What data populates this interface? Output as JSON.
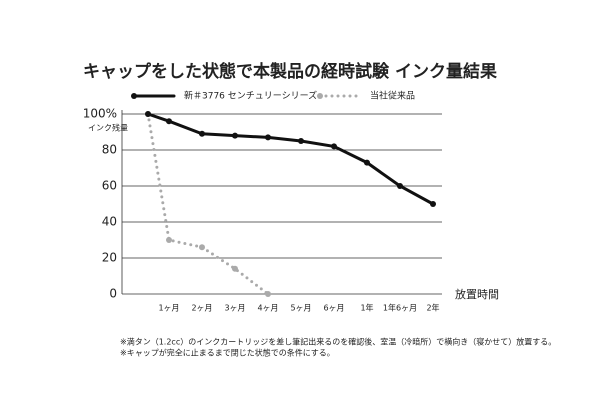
{
  "chart_data": {
    "type": "line",
    "title": "キャップをした状態で本製品の経時試験 インク量結果",
    "y_label": "インク残量",
    "x_label": "放置時間",
    "categories": [
      null,
      "1ヶ月",
      "2ヶ月",
      "3ヶ月",
      "4ヶ月",
      "5ヶ月",
      "6ヶ月",
      "1年",
      "1年6ヶ月",
      "2年"
    ],
    "series": [
      {
        "name": "新＃3776 センチュリーシリーズ",
        "color": "#111111",
        "style": "solid",
        "values": [
          100,
          96,
          89,
          88,
          87,
          85,
          82,
          73,
          60,
          50
        ]
      },
      {
        "name": "当社従来品",
        "color": "#aaaaaa",
        "style": "dotted",
        "values": [
          100,
          30,
          26,
          14,
          0,
          null,
          null,
          null,
          null,
          null
        ]
      }
    ],
    "ylim": [
      0,
      100
    ],
    "yticks": [
      0,
      20,
      40,
      60,
      80,
      {
        "value": 100,
        "label": "100%"
      }
    ],
    "grid": true,
    "notes": [
      "※満タン（1.2cc）のインクカートリッジを差し筆記出来るのを確認後、室温（冷暗所）で横向き（寝かせて）放置する。",
      "※キャップが完全に止まるまで閉じた状態での条件にする。"
    ]
  }
}
